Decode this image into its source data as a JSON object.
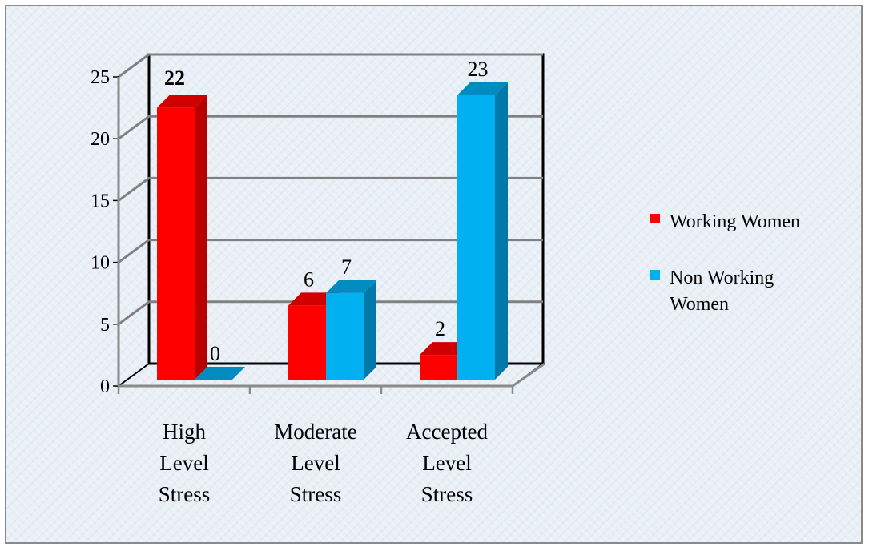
{
  "chart_data": {
    "type": "bar",
    "categories": [
      [
        "High",
        "Level",
        "Stress"
      ],
      [
        "Moderate",
        "Level",
        "Stress"
      ],
      [
        "Accepted",
        "Level",
        "Stress"
      ]
    ],
    "series": [
      {
        "name": "Working Women",
        "values": [
          22,
          6,
          2
        ],
        "value_labels": [
          "22",
          "6",
          "2"
        ],
        "color": "#ff0000",
        "side_color": "#b80000",
        "top_color": "#d00000"
      },
      {
        "name": "Non Working Women",
        "values": [
          0,
          7,
          23
        ],
        "value_labels": [
          "0",
          "7",
          "23"
        ],
        "color": "#00b0f0",
        "side_color": "#0079a8",
        "top_color": "#008cc0"
      }
    ],
    "legend_lines": [
      [
        "Working Women"
      ],
      [
        "Non Working",
        "Women"
      ]
    ],
    "ylim": [
      0,
      25
    ],
    "yticks": [
      "0",
      "5",
      "10",
      "15",
      "20",
      "25"
    ],
    "grid": true,
    "legend_position": "right",
    "bold_value_label": "22"
  }
}
